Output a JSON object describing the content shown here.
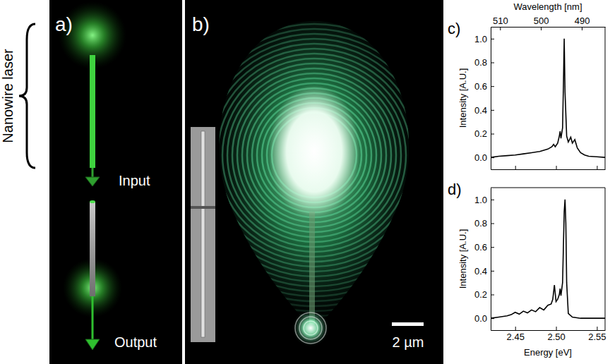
{
  "figure": {
    "panel_a": {
      "label": "a)",
      "bracket_label": "Nanowire laser",
      "input": "Input",
      "output": "Output"
    },
    "panel_b": {
      "label": "b)",
      "scale_bar": "2 µm"
    }
  },
  "chart_data": [
    {
      "type": "line",
      "panel_label": "c)",
      "y_label": "Intensity [A.U.]",
      "x2_label": "Wavelength [nm]",
      "color": "#000000",
      "x": [
        2.42,
        2.43,
        2.44,
        2.45,
        2.46,
        2.47,
        2.48,
        2.485,
        2.49,
        2.495,
        2.497,
        2.499,
        2.502,
        2.504,
        2.505,
        2.506,
        2.508,
        2.509,
        2.51,
        2.511,
        2.513,
        2.515,
        2.518,
        2.52,
        2.523,
        2.526,
        2.53,
        2.535,
        2.54,
        2.55,
        2.56
      ],
      "values": [
        0.0,
        0.01,
        0.015,
        0.02,
        0.03,
        0.04,
        0.05,
        0.06,
        0.07,
        0.09,
        0.11,
        0.09,
        0.12,
        0.18,
        0.22,
        0.16,
        0.25,
        0.6,
        1.0,
        0.55,
        0.18,
        0.13,
        0.17,
        0.12,
        0.15,
        0.08,
        0.04,
        0.02,
        0.01,
        0.005,
        0.0
      ],
      "xlim": [
        2.42,
        2.56
      ],
      "xticks": [
        2.45,
        {
          "value": 2.5,
          "label": "2.50"
        },
        2.55
      ],
      "x2lim": [
        512.3,
        484.3
      ],
      "x2ticks": [
        510,
        500,
        490
      ],
      "ylim": [
        -0.1,
        1.1
      ],
      "yticks": [
        {
          "value": 0,
          "label": "0.0"
        },
        0.2,
        0.4,
        0.6,
        0.8,
        {
          "value": 1,
          "label": "1.0"
        }
      ],
      "tick_labels": "y"
    },
    {
      "type": "line",
      "panel_label": "d)",
      "y_label": "Intensity [A.U.]",
      "x_label": "Energy [eV]",
      "color": "#000000",
      "x": [
        2.42,
        2.43,
        2.44,
        2.445,
        2.45,
        2.455,
        2.46,
        2.465,
        2.47,
        2.475,
        2.48,
        2.485,
        2.49,
        2.494,
        2.496,
        2.498,
        2.5,
        2.502,
        2.504,
        2.505,
        2.506,
        2.508,
        2.51,
        2.511,
        2.512,
        2.513,
        2.515,
        2.52,
        2.53,
        2.56
      ],
      "values": [
        0.0,
        0.01,
        0.02,
        0.03,
        0.05,
        0.035,
        0.06,
        0.045,
        0.07,
        0.055,
        0.09,
        0.07,
        0.11,
        0.12,
        0.16,
        0.28,
        0.14,
        0.16,
        0.2,
        0.25,
        0.19,
        0.3,
        0.9,
        1.0,
        0.8,
        0.3,
        0.04,
        0.01,
        0.0,
        0.0
      ],
      "xlim": [
        2.42,
        2.56
      ],
      "xticks": [
        2.45,
        {
          "value": 2.5,
          "label": "2.50"
        },
        2.55
      ],
      "ylim": [
        -0.1,
        1.1
      ],
      "yticks": [
        {
          "value": 0,
          "label": "0.0"
        },
        0.2,
        0.4,
        0.6,
        0.8,
        {
          "value": 1,
          "label": "1.0"
        }
      ]
    }
  ]
}
